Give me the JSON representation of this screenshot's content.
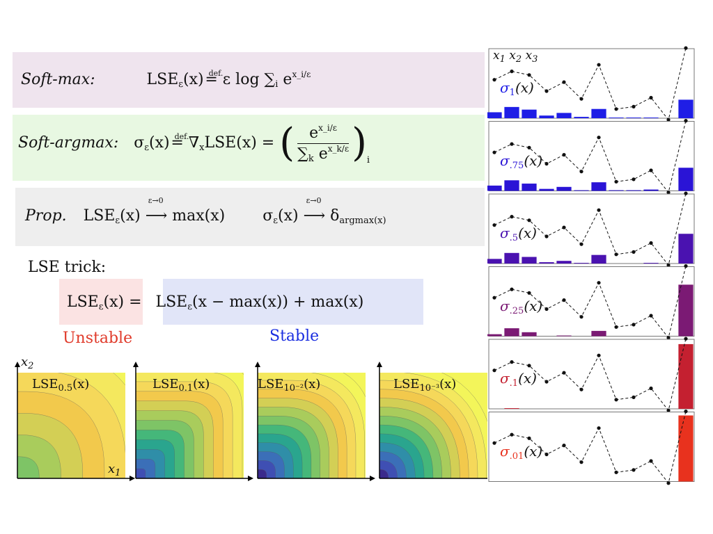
{
  "formulas": {
    "softmax": {
      "name": "Soft-max:",
      "lhs": "LSE",
      "lhs_sub": "ε",
      "lhs_arg": "(x)",
      "def": "def.",
      "rhs_a": "ε log ∑",
      "rhs_sub": "i",
      "rhs_b": "e",
      "rhs_sup": "x_i/ε"
    },
    "softargmax": {
      "name": "Soft-argmax:",
      "lhs": "σ",
      "lhs_sub": "ε",
      "lhs_arg": "(x)",
      "def": "def.",
      "mid": "∇",
      "mid_sub": "x",
      "mid_b": "LSE(x) =",
      "num_base": "e",
      "num_sup": "x_i/ε",
      "den_a": "∑",
      "den_sub": "k",
      "den_b": "e",
      "den_sup": "x_k/ε",
      "outer_sub": "i"
    },
    "prop": {
      "name": "Prop.",
      "a": "LSE",
      "a_sub": "ε",
      "a_arg": "(x)",
      "arrow_label": "ε→0",
      "a_rhs": "max(x)",
      "b": "σ",
      "b_sub": "ε",
      "b_arg": "(x)",
      "b_rhs": "δ",
      "b_rhs_sub": "argmax(x)"
    },
    "trick": {
      "title": "LSE trick:",
      "lhs": "LSE",
      "lhs_sub": "ε",
      "lhs_arg": "(x) =",
      "rhs": "LSE",
      "rhs_sub": "ε",
      "rhs_arg": "(x − max(x)) + max(x)",
      "unstable": "Unstable",
      "stable": "Stable"
    }
  },
  "colors": {
    "softmax_bg": "#efe4ee",
    "softargmax_bg": "#e8f8e2",
    "prop_bg": "#eeeeee",
    "unstable_bg": "#fbe3e3",
    "stable_bg": "#e1e5f8",
    "unstable_text": "#e03a2a",
    "stable_text": "#1a2ee0"
  },
  "contours": [
    {
      "label": "LSE",
      "sub": "0.5",
      "arg": "(x)",
      "levels": 7
    },
    {
      "label": "LSE",
      "sub": "0.1",
      "arg": "(x)",
      "levels": 12
    },
    {
      "label": "LSE",
      "sub": "10⁻²",
      "arg": "(x)",
      "levels": 13
    },
    {
      "label": "LSE",
      "sub": "10⁻³",
      "arg": "(x)",
      "levels": 13
    }
  ],
  "axis_labels": {
    "x1": "x",
    "x1_sub": "1",
    "x2": "x",
    "x2_sub": "2"
  },
  "right_panel": {
    "top_labels": [
      "x",
      "x",
      "x"
    ],
    "top_subs": [
      "1",
      "2",
      "3"
    ],
    "points": [
      0.62,
      0.76,
      0.7,
      0.43,
      0.58,
      0.3,
      0.87,
      0.13,
      0.17,
      0.32,
      -0.05,
      1.15
    ],
    "rows": [
      {
        "label": "σ",
        "sub": "1",
        "arg": "(x)",
        "color": "#1f1ee6",
        "bars": [
          0.09,
          0.17,
          0.13,
          0.04,
          0.08,
          0.02,
          0.14,
          0.01,
          0.01,
          0.01,
          0.0,
          0.28
        ]
      },
      {
        "label": "σ",
        "sub": ".75",
        "arg": "(x)",
        "color": "#2a14d6",
        "bars": [
          0.08,
          0.16,
          0.11,
          0.03,
          0.06,
          0.01,
          0.13,
          0.01,
          0.01,
          0.02,
          0.0,
          0.35
        ]
      },
      {
        "label": "σ",
        "sub": ".5",
        "arg": "(x)",
        "color": "#4a12b0",
        "bars": [
          0.07,
          0.16,
          0.1,
          0.02,
          0.04,
          0.01,
          0.13,
          0.0,
          0.0,
          0.01,
          0.0,
          0.45
        ]
      },
      {
        "label": "σ",
        "sub": ".25",
        "arg": "(x)",
        "color": "#7b1a74",
        "bars": [
          0.03,
          0.12,
          0.06,
          0.0,
          0.01,
          0.0,
          0.08,
          0.0,
          0.0,
          0.0,
          0.0,
          0.78
        ]
      },
      {
        "label": "σ",
        "sub": ".1",
        "arg": "(x)",
        "color": "#c42030",
        "bars": [
          0.0,
          0.01,
          0.0,
          0.0,
          0.0,
          0.0,
          0.0,
          0.0,
          0.0,
          0.0,
          0.0,
          0.98
        ]
      },
      {
        "label": "σ",
        "sub": ".01",
        "arg": "(x)",
        "color": "#e8321e",
        "bars": [
          0.0,
          0.0,
          0.0,
          0.0,
          0.0,
          0.0,
          0.0,
          0.0,
          0.0,
          0.0,
          0.0,
          1.0
        ]
      }
    ]
  }
}
